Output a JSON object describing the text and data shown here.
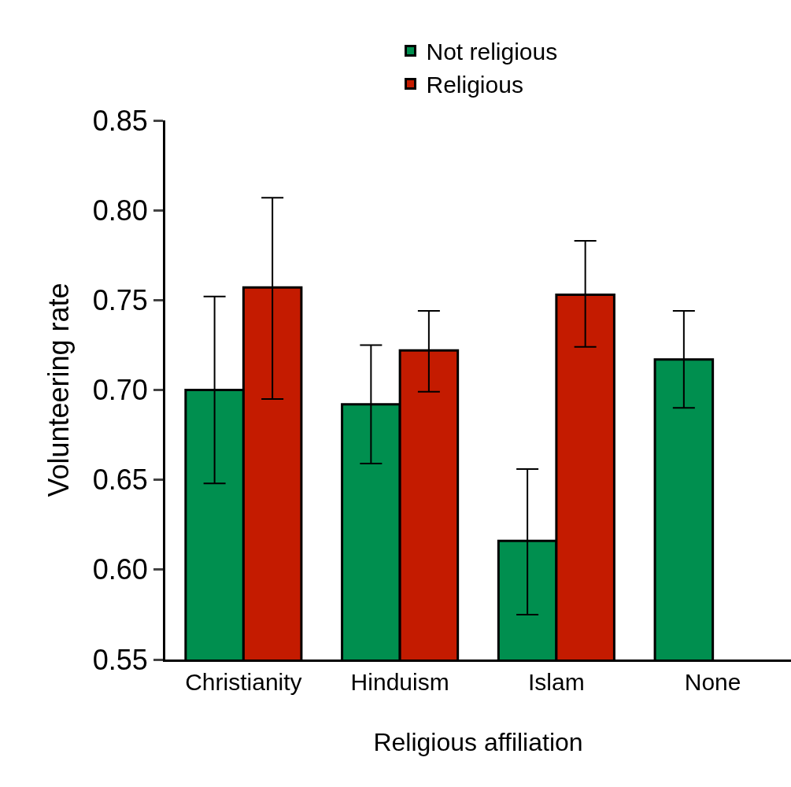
{
  "chart_data": {
    "type": "bar",
    "xlabel": "Religious affiliation",
    "ylabel": "Volunteering rate",
    "categories": [
      "Christianity",
      "Hinduism",
      "Islam",
      "None"
    ],
    "series": [
      {
        "name": "Not religious",
        "color": "#008f4f",
        "values": [
          0.7,
          0.692,
          0.616,
          0.717
        ],
        "errors": [
          [
            0.648,
            0.752
          ],
          [
            0.659,
            0.725
          ],
          [
            0.575,
            0.656
          ],
          [
            0.69,
            0.744
          ]
        ]
      },
      {
        "name": "Religious",
        "color": "#c41b00",
        "values": [
          0.757,
          0.722,
          0.753,
          null
        ],
        "errors": [
          [
            0.695,
            0.807
          ],
          [
            0.699,
            0.744
          ],
          [
            0.724,
            0.783
          ],
          null
        ]
      }
    ],
    "ylim": [
      0.55,
      0.85
    ],
    "yticks": [
      {
        "value": 0.55,
        "label": "0.55"
      },
      {
        "value": 0.6,
        "label": "0.60"
      },
      {
        "value": 0.65,
        "label": "0.65"
      },
      {
        "value": 0.7,
        "label": "0.70"
      },
      {
        "value": 0.75,
        "label": "0.75"
      },
      {
        "value": 0.8,
        "label": "0.80"
      },
      {
        "value": 0.85,
        "label": "0.85"
      }
    ],
    "grid": false,
    "legend": "top"
  }
}
